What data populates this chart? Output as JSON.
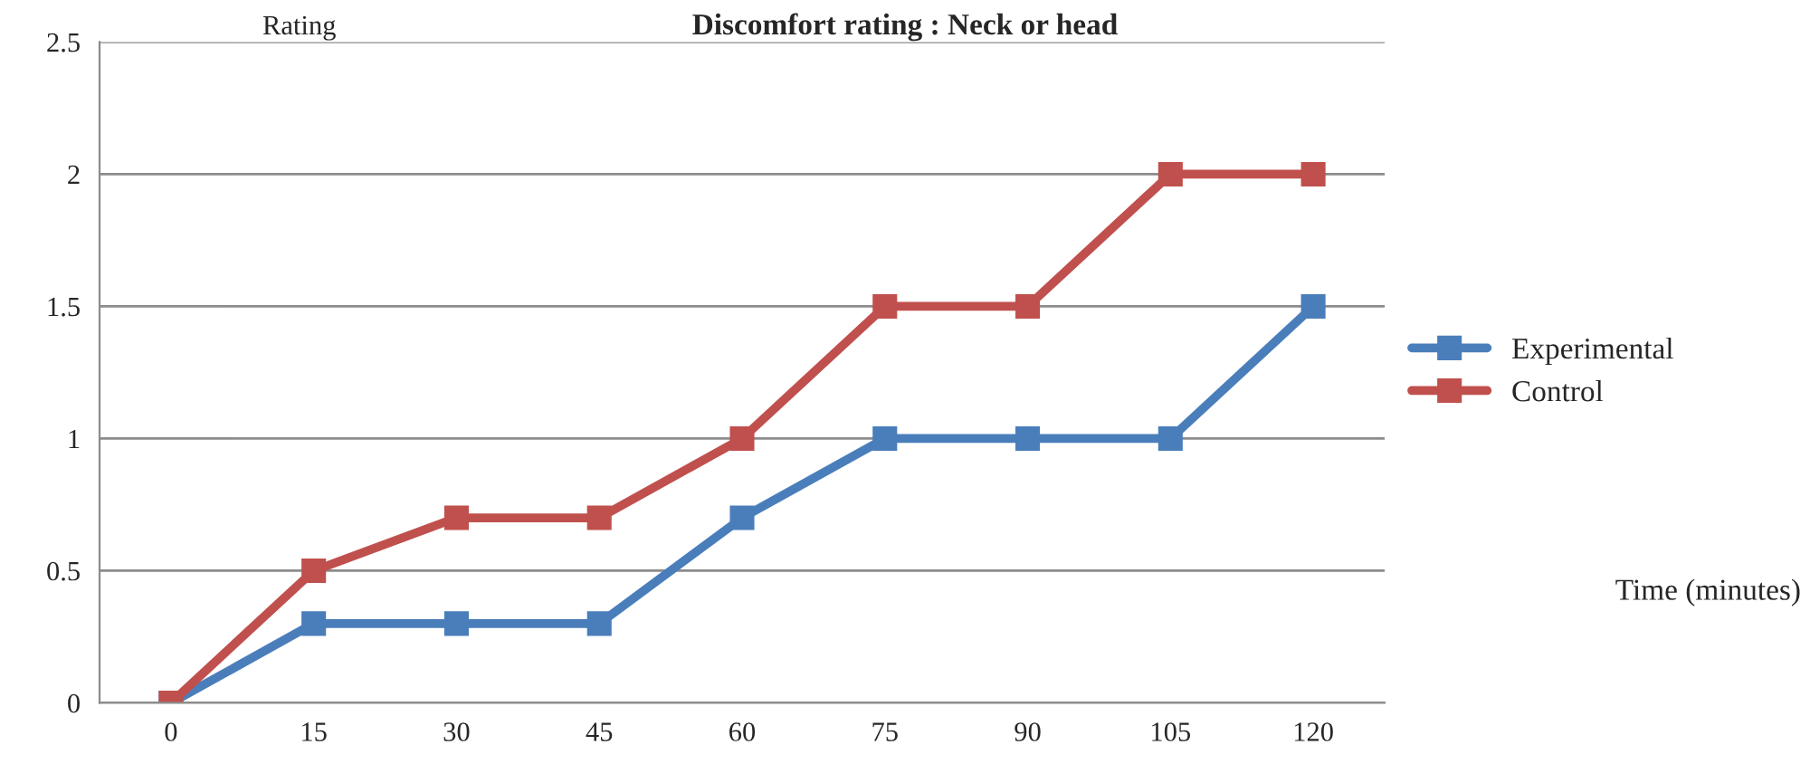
{
  "chart_data": {
    "type": "line",
    "title": "Discomfort rating : Neck or head",
    "ylabel": "Rating",
    "annotations": [
      "Time (minutes)"
    ],
    "categories": [
      "0",
      "15",
      "30",
      "45",
      "60",
      "75",
      "90",
      "105",
      "120"
    ],
    "series": [
      {
        "name": "Experimental",
        "color": "#4a7ebb",
        "values": [
          0,
          0.3,
          0.3,
          0.3,
          0.7,
          1,
          1,
          1,
          1.5
        ]
      },
      {
        "name": "Control",
        "color": "#c0504d",
        "values": [
          0,
          0.5,
          0.7,
          0.7,
          1,
          1.5,
          1.5,
          2,
          2
        ]
      }
    ],
    "ylim": [
      0,
      2.5
    ],
    "yticks": [
      0,
      0.5,
      1,
      1.5,
      2,
      2.5
    ],
    "grid": "y",
    "legend": "right",
    "marker": "square",
    "line_style": "solid"
  }
}
